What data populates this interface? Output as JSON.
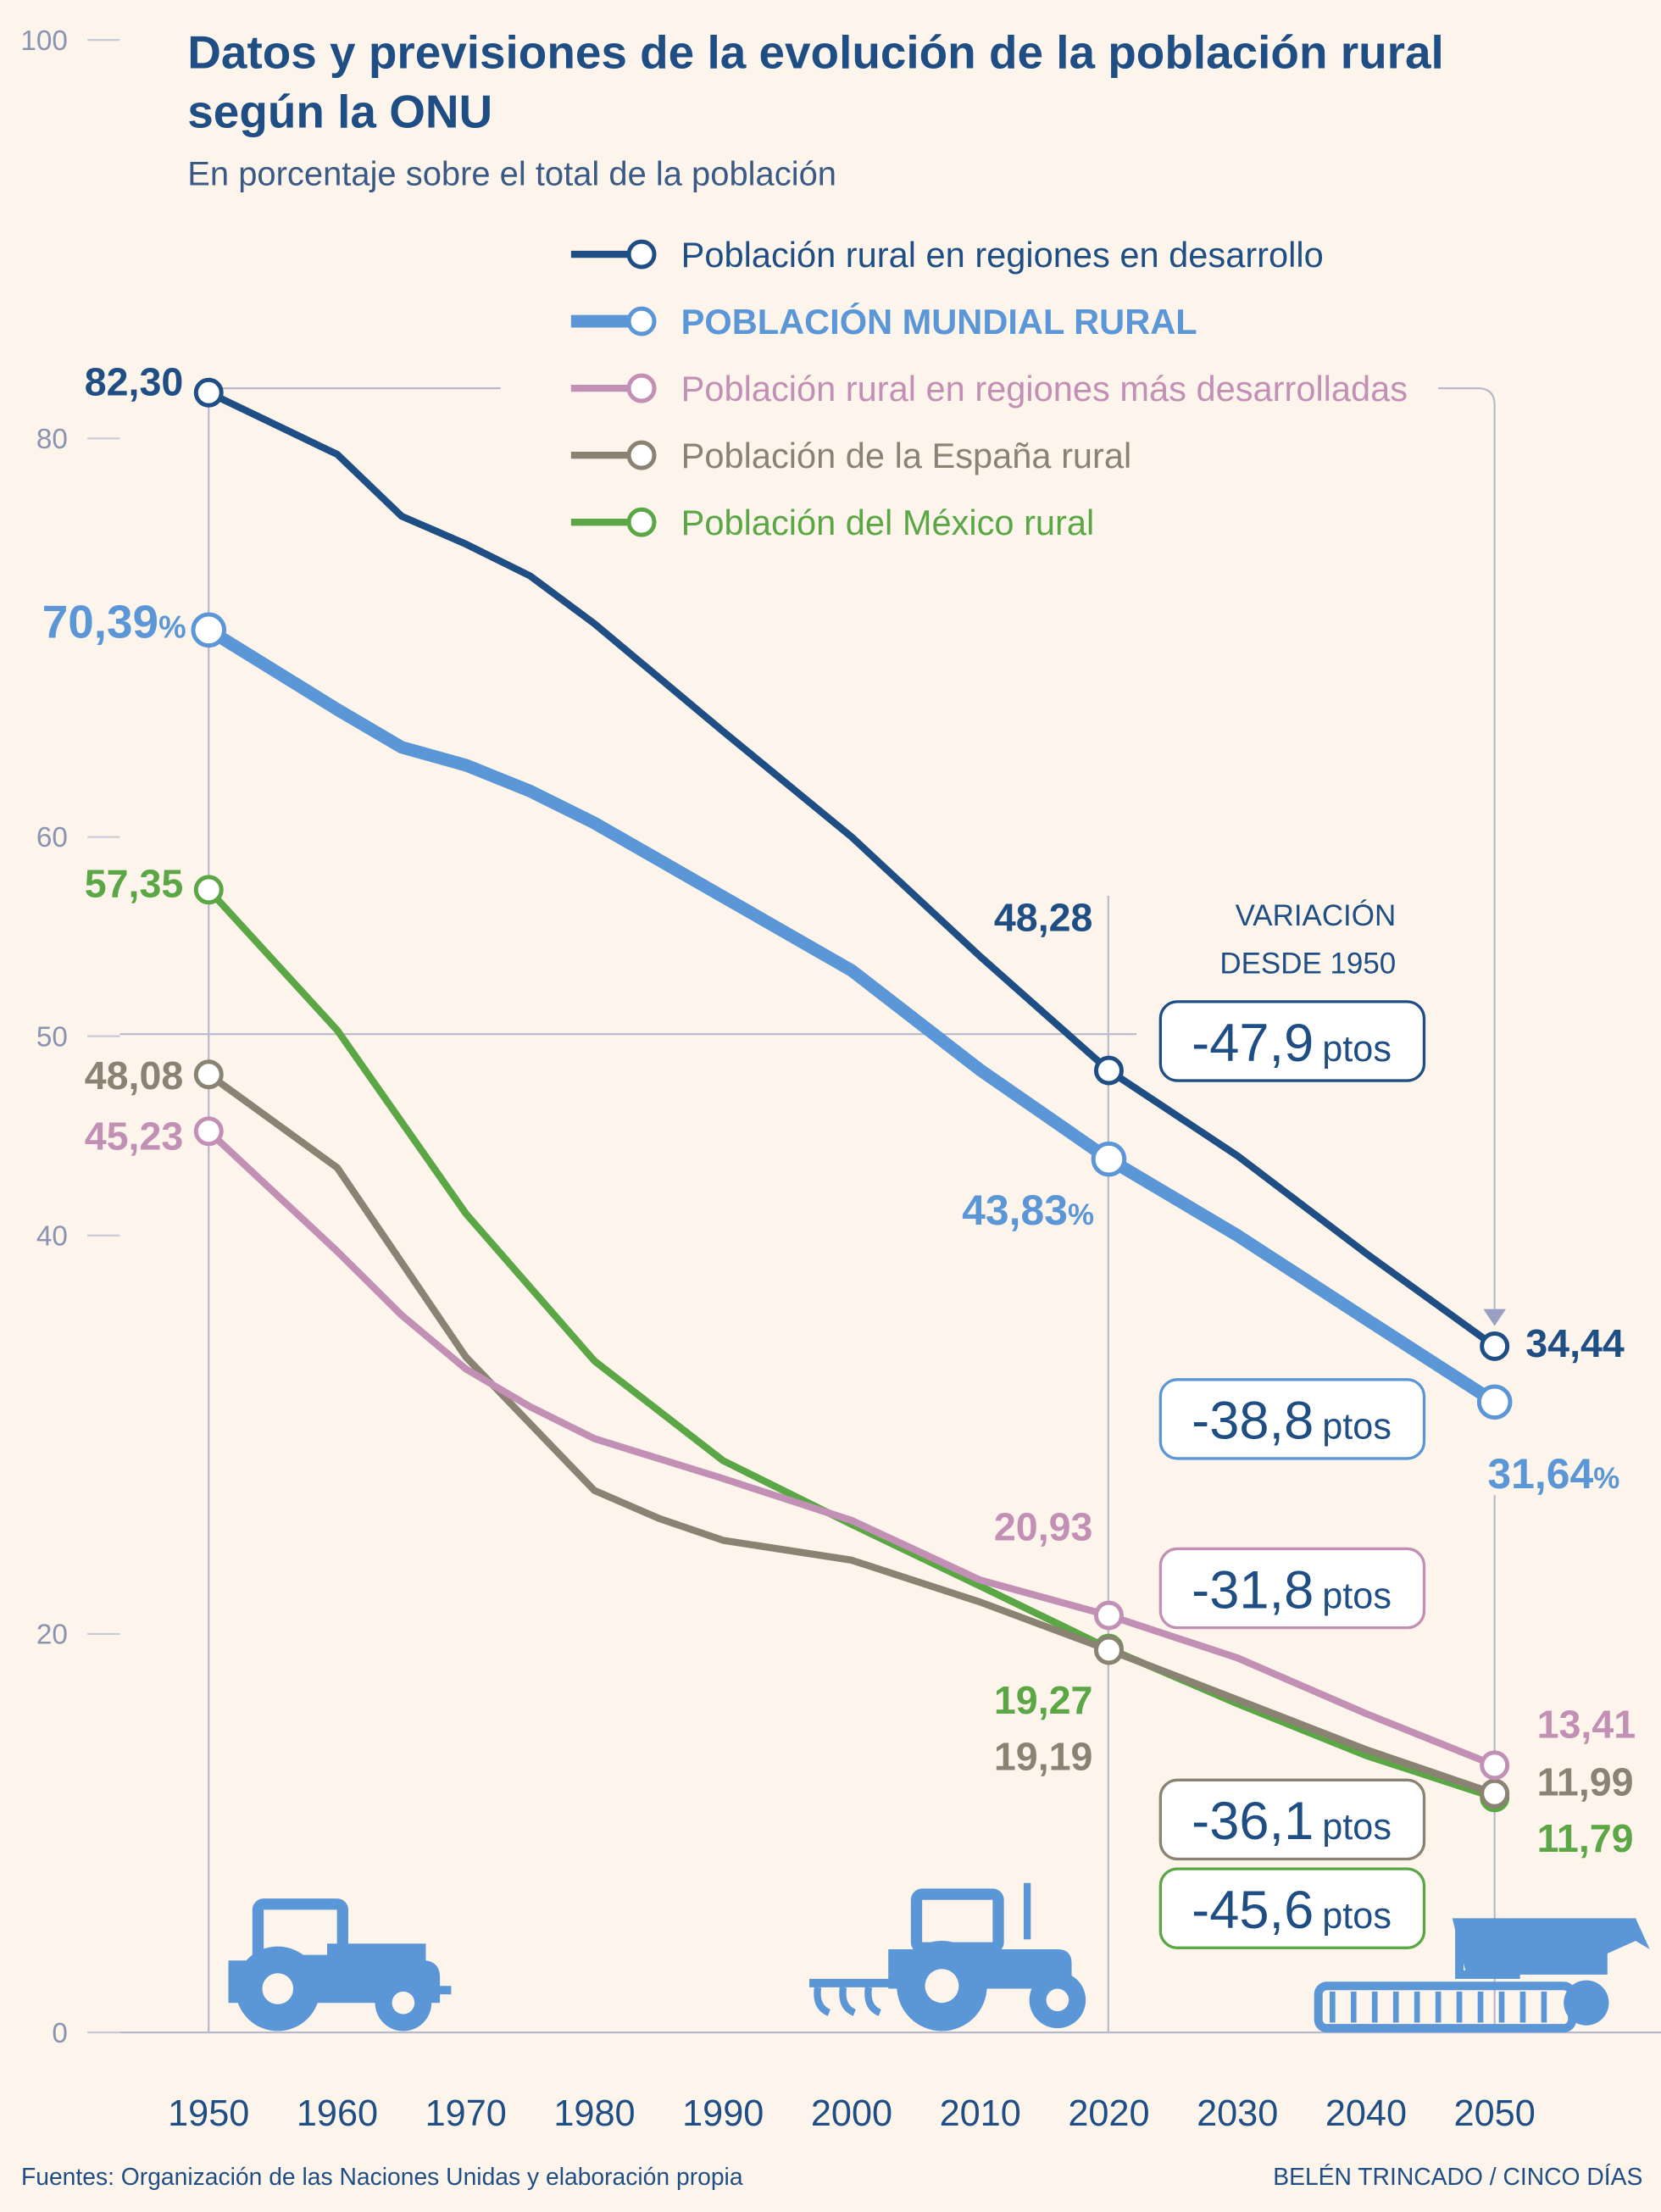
{
  "chart_data": {
    "type": "line",
    "title": "Datos y previsiones de la evolución de la población rural según la ONU",
    "subtitle": "En porcentaje sobre el total de la población",
    "title_line1": "Datos y previsiones de la evolución de la población rural",
    "title_line2": "según la ONU",
    "xlabel": "",
    "ylabel": "",
    "ylim": [
      0,
      100
    ],
    "xlim": [
      1950,
      2050
    ],
    "y_ticks": [
      "100",
      "80",
      "60",
      "50",
      "40",
      "20",
      "0"
    ],
    "x_ticks": [
      "1950",
      "1960",
      "1970",
      "1980",
      "1990",
      "2000",
      "2010",
      "2020",
      "2030",
      "2040",
      "2050"
    ],
    "grid": false,
    "legend_position": "top",
    "series": [
      {
        "name": "Población rural en regiones en desarrollo",
        "color": "#1f4e85",
        "x": [
          1950,
          1960,
          1965,
          1970,
          1975,
          1980,
          1990,
          2000,
          2010,
          2020,
          2030,
          2040,
          2050
        ],
        "values": [
          82.3,
          79.2,
          76.1,
          74.7,
          73.1,
          70.7,
          65.3,
          60.0,
          54.0,
          48.28,
          44.0,
          39.1,
          34.44
        ],
        "labels": [
          "82,30",
          "48,28",
          "34,44"
        ],
        "label_suffix": ""
      },
      {
        "name": "POBLACIÓN MUNDIAL RURAL",
        "color": "#5b96d6",
        "x": [
          1950,
          1960,
          1965,
          1970,
          1975,
          1980,
          1990,
          2000,
          2010,
          2020,
          2030,
          2040,
          2050
        ],
        "values": [
          70.39,
          66.4,
          64.5,
          63.6,
          62.3,
          60.7,
          57.0,
          53.3,
          48.3,
          43.83,
          40.0,
          35.8,
          31.64
        ],
        "labels": [
          "70,39",
          "43,83",
          "31,64"
        ],
        "label_suffix": "%"
      },
      {
        "name": "Población rural en regiones más desarrolladas",
        "color": "#c290b4",
        "x": [
          1950,
          1960,
          1965,
          1970,
          1975,
          1980,
          1990,
          2000,
          2010,
          2020,
          2030,
          2040,
          2050
        ],
        "values": [
          45.23,
          39.2,
          36.0,
          33.3,
          31.4,
          29.8,
          27.8,
          25.7,
          22.7,
          20.93,
          18.8,
          16.0,
          13.41
        ],
        "labels": [
          "45,23",
          "20,93",
          "13,41"
        ],
        "label_suffix": ""
      },
      {
        "name": "Población de la España rural",
        "color": "#8a8273",
        "x": [
          1950,
          1960,
          1970,
          1980,
          1985,
          1990,
          2000,
          2010,
          2020,
          2030,
          2040,
          2050
        ],
        "values": [
          48.08,
          43.4,
          33.9,
          27.2,
          25.8,
          24.7,
          23.7,
          21.6,
          19.19,
          16.7,
          14.2,
          11.99
        ],
        "labels": [
          "48,08",
          "19,19",
          "11,99"
        ],
        "label_suffix": ""
      },
      {
        "name": "Población del México rural",
        "color": "#5ba645",
        "x": [
          1950,
          1960,
          1970,
          1980,
          1990,
          2000,
          2010,
          2020,
          2030,
          2040,
          2050
        ],
        "values": [
          57.35,
          50.3,
          41.1,
          33.7,
          28.7,
          25.5,
          22.4,
          19.27,
          16.5,
          13.9,
          11.79
        ],
        "labels": [
          "57,35",
          "19,27",
          "11,79"
        ],
        "label_suffix": ""
      }
    ],
    "annotations": {
      "variation_header_1": "VARIACIÓN",
      "variation_header_2": "DESDE 1950",
      "unit": "ptos",
      "variations": [
        "-47,9",
        "-38,8",
        "-31,8",
        "-36,1",
        "-45,6"
      ]
    }
  },
  "footer": {
    "source": "Fuentes: Organización de las Naciones Unidas y elaboración propia",
    "credit": "BELÉN TRINCADO / CINCO DÍAS"
  },
  "icons": [
    "tractor-icon",
    "tractor-harrow-icon",
    "combine-harvester-icon"
  ],
  "background": "#fdf4ec"
}
